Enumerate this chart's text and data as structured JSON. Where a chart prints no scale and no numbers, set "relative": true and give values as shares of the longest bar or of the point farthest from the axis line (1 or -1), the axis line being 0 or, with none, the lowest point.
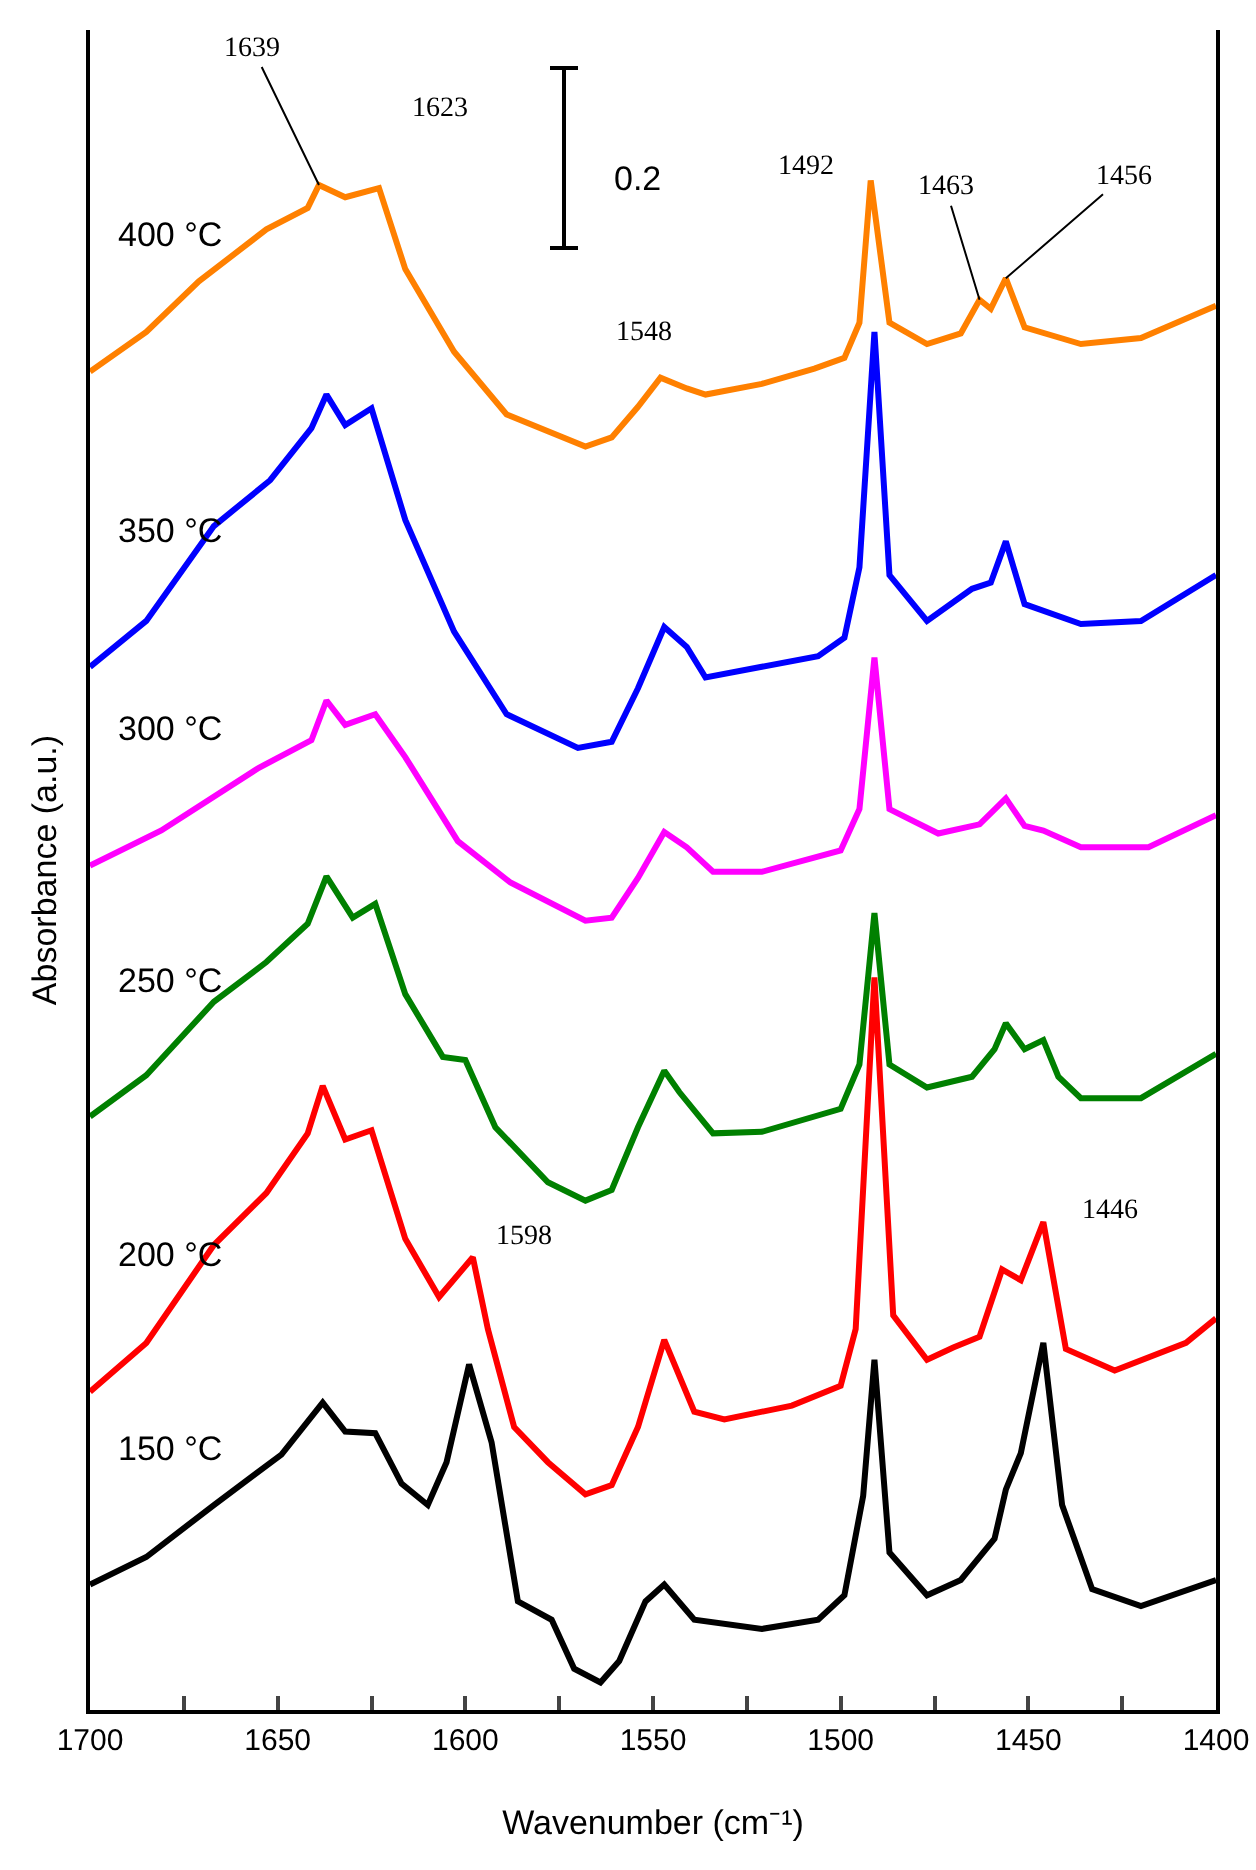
{
  "chart_data": {
    "type": "line",
    "xlabel": "Wavenumber (cm⁻¹)",
    "ylabel": "Absorbance (a.u.)",
    "relative": true,
    "grid": false,
    "legend": false,
    "marker": "none",
    "line_style": "solid",
    "xlim": [
      1700,
      1400
    ],
    "xticks": [
      1700,
      {
        "value": 1675,
        "label": null
      },
      1650,
      {
        "value": 1625,
        "label": null
      },
      1600,
      {
        "value": 1575,
        "label": null
      },
      1550,
      {
        "value": 1525,
        "label": null
      },
      1500,
      {
        "value": 1475,
        "label": null
      },
      1450,
      {
        "value": 1425,
        "label": null
      },
      1400
    ],
    "series": [
      {
        "name": "400 °C",
        "color": "#ff8000",
        "x": [
          1700,
          1685,
          1671,
          1653,
          1642,
          1639,
          1632,
          1623,
          1616,
          1603,
          1589,
          1568,
          1561,
          1554,
          1548,
          1541,
          1536,
          1521,
          1507,
          1499,
          1495,
          1492,
          1487,
          1477,
          1468,
          1463,
          1460,
          1456,
          1451,
          1436,
          1420,
          1400
        ],
        "values": [
          0.875,
          0.901,
          0.934,
          0.968,
          0.982,
          0.997,
          0.989,
          0.995,
          0.942,
          0.888,
          0.847,
          0.826,
          0.832,
          0.852,
          0.871,
          0.864,
          0.86,
          0.867,
          0.877,
          0.884,
          0.907,
          1.0,
          0.907,
          0.893,
          0.9,
          0.922,
          0.916,
          0.936,
          0.904,
          0.893,
          0.897,
          0.918
        ]
      },
      {
        "name": "350 °C",
        "color": "#0000ff",
        "x": [
          1700,
          1685,
          1667,
          1652,
          1641,
          1637,
          1632,
          1625,
          1616,
          1603,
          1589,
          1570,
          1561,
          1554,
          1547,
          1541,
          1536,
          1521,
          1506,
          1499,
          1495,
          1491,
          1487,
          1477,
          1465,
          1460,
          1456,
          1451,
          1436,
          1420,
          1400
        ],
        "values": [
          0.682,
          0.712,
          0.774,
          0.804,
          0.838,
          0.86,
          0.84,
          0.851,
          0.778,
          0.705,
          0.651,
          0.629,
          0.633,
          0.668,
          0.708,
          0.695,
          0.675,
          0.682,
          0.689,
          0.701,
          0.747,
          0.901,
          0.742,
          0.712,
          0.733,
          0.737,
          0.764,
          0.723,
          0.71,
          0.712,
          0.742
        ]
      },
      {
        "name": "300 °C",
        "color": "#ff00ff",
        "x": [
          1700,
          1681,
          1655,
          1641,
          1637,
          1632,
          1624,
          1616,
          1602,
          1588,
          1568,
          1561,
          1554,
          1547,
          1541,
          1534,
          1521,
          1500,
          1495,
          1491,
          1487,
          1474,
          1463,
          1456,
          1451,
          1446,
          1436,
          1418,
          1400
        ],
        "values": [
          0.552,
          0.575,
          0.616,
          0.634,
          0.66,
          0.644,
          0.651,
          0.623,
          0.568,
          0.541,
          0.516,
          0.518,
          0.544,
          0.574,
          0.564,
          0.548,
          0.548,
          0.562,
          0.589,
          0.688,
          0.589,
          0.573,
          0.579,
          0.596,
          0.578,
          0.575,
          0.564,
          0.564,
          0.585
        ]
      },
      {
        "name": "250 °C",
        "color": "#008000",
        "x": [
          1700,
          1685,
          1667,
          1653,
          1642,
          1637,
          1630,
          1624,
          1616,
          1606,
          1600,
          1592,
          1578,
          1568,
          1561,
          1554,
          1547,
          1543,
          1534,
          1521,
          1500,
          1495,
          1491,
          1487,
          1477,
          1465,
          1459,
          1456,
          1451,
          1446,
          1442,
          1436,
          1420,
          1400
        ],
        "values": [
          0.388,
          0.415,
          0.463,
          0.489,
          0.514,
          0.545,
          0.518,
          0.527,
          0.468,
          0.427,
          0.425,
          0.381,
          0.345,
          0.333,
          0.34,
          0.381,
          0.418,
          0.404,
          0.377,
          0.378,
          0.393,
          0.422,
          0.521,
          0.422,
          0.407,
          0.414,
          0.432,
          0.449,
          0.432,
          0.438,
          0.414,
          0.4,
          0.4,
          0.429
        ]
      },
      {
        "name": "200 °C",
        "color": "#ff0000",
        "x": [
          1700,
          1685,
          1667,
          1653,
          1642,
          1638,
          1632,
          1625,
          1616,
          1607,
          1598,
          1594,
          1587,
          1578,
          1568,
          1561,
          1554,
          1547,
          1539,
          1531,
          1513,
          1500,
          1496,
          1491,
          1486,
          1477,
          1470,
          1463,
          1457,
          1452,
          1446,
          1440,
          1427,
          1408,
          1400
        ],
        "values": [
          0.208,
          0.24,
          0.304,
          0.338,
          0.377,
          0.408,
          0.373,
          0.379,
          0.308,
          0.27,
          0.296,
          0.249,
          0.185,
          0.162,
          0.141,
          0.147,
          0.185,
          0.242,
          0.195,
          0.19,
          0.199,
          0.212,
          0.249,
          0.479,
          0.258,
          0.229,
          0.237,
          0.244,
          0.288,
          0.281,
          0.319,
          0.236,
          0.222,
          0.24,
          0.256
        ]
      },
      {
        "name": "150 °C",
        "color": "#000000",
        "x": [
          1700,
          1685,
          1667,
          1649,
          1638,
          1632,
          1624,
          1617,
          1610,
          1605,
          1599,
          1593,
          1586,
          1577,
          1571,
          1564,
          1559,
          1552,
          1547,
          1539,
          1521,
          1506,
          1499,
          1494,
          1491,
          1487,
          1477,
          1468,
          1459,
          1456,
          1452,
          1446,
          1441,
          1433,
          1420,
          1400
        ],
        "values": [
          0.082,
          0.1,
          0.134,
          0.167,
          0.201,
          0.182,
          0.181,
          0.148,
          0.134,
          0.162,
          0.226,
          0.175,
          0.071,
          0.059,
          0.027,
          0.018,
          0.032,
          0.071,
          0.082,
          0.059,
          0.053,
          0.059,
          0.075,
          0.14,
          0.229,
          0.103,
          0.075,
          0.085,
          0.112,
          0.144,
          0.168,
          0.24,
          0.134,
          0.079,
          0.068,
          0.085
        ]
      }
    ],
    "annotations": [
      {
        "text": "1639",
        "x": 1639,
        "y": 0.997
      },
      {
        "text": "1623",
        "x": 1623,
        "y": 0.995
      },
      {
        "text": "1548",
        "x": 1548,
        "y": 0.871
      },
      {
        "text": "1492",
        "x": 1492,
        "y": 1.0
      },
      {
        "text": "1463",
        "x": 1463,
        "y": 0.922
      },
      {
        "text": "1456",
        "x": 1456,
        "y": 0.936
      },
      {
        "text": "1598",
        "x": 1598,
        "y": 0.296
      },
      {
        "text": "1446",
        "x": 1446,
        "y": 0.319
      },
      "0.2"
    ]
  }
}
